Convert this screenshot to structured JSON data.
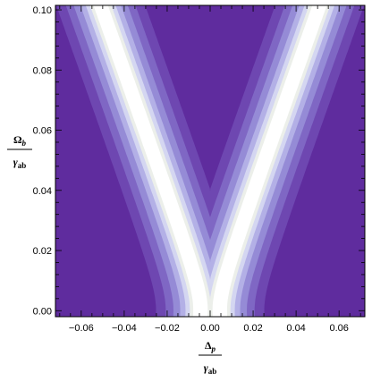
{
  "chart_data": {
    "type": "heatmap",
    "subtype": "contour",
    "xlim": [
      -0.072,
      0.072
    ],
    "ylim": [
      -0.002,
      0.1015
    ],
    "x_ticks": [
      -0.06,
      -0.04,
      -0.02,
      0.0,
      0.02,
      0.04,
      0.06
    ],
    "x_tick_labels": [
      "−0.06",
      "−0.04",
      "−0.02",
      "0.00",
      "0.02",
      "0.04",
      "0.06"
    ],
    "y_ticks": [
      0.0,
      0.02,
      0.04,
      0.06,
      0.08,
      0.1
    ],
    "y_tick_labels": [
      "0.00",
      "0.02",
      "0.04",
      "0.06",
      "0.08",
      "0.10"
    ],
    "xlabel": {
      "numerator": "Δ",
      "numerator_sub": "p",
      "denominator": "γ",
      "denominator_sub": "ab"
    },
    "ylabel": {
      "numerator": "Ω",
      "numerator_sub": "b",
      "denominator": "γ",
      "denominator_sub": "ab"
    },
    "feature": "V-shaped ridge of maximum value at x = ±y/2 (Autler–Townes splitting), vertex near x = 0, y = 0",
    "ridge_center": {
      "x_at_y": [
        [
          0.0,
          0.0
        ],
        [
          0.05,
          0.025
        ],
        [
          0.1,
          0.05
        ]
      ]
    },
    "ridge_half_width": 0.0045,
    "levels": 8,
    "grid": false,
    "legend": "none",
    "colors": {
      "background": "#5f2c9e",
      "ramp": [
        "#5f2c9e",
        "#6e47b1",
        "#7f67c4",
        "#958bd6",
        "#b3b0e6",
        "#d4d6f1",
        "#ecefea",
        "#ffffff"
      ]
    }
  }
}
